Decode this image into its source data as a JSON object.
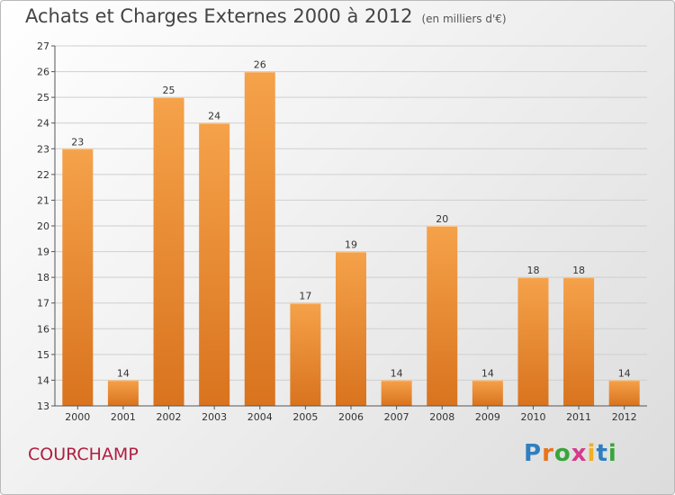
{
  "header": {
    "title": "Achats et Charges Externes 2000 à 2012",
    "subtitle": "(en milliers d'€)"
  },
  "footer": {
    "commune": "COURCHAMP",
    "brand_letters": [
      "P",
      "r",
      "o",
      "x",
      "i",
      "t",
      "i"
    ],
    "brand_colors": [
      "#2f7fc0",
      "#e8741c",
      "#3aa53a",
      "#d63a8a",
      "#f0b020",
      "#2f7fc0",
      "#3aa53a"
    ]
  },
  "colors": {
    "bar_light": "#f5a24a",
    "bar_dark": "#d9731e",
    "axis": "#555555",
    "grid": "#cfcfcf"
  },
  "chart_data": {
    "type": "bar",
    "categories": [
      "2000",
      "2001",
      "2002",
      "2003",
      "2004",
      "2005",
      "2006",
      "2007",
      "2008",
      "2009",
      "2010",
      "2011",
      "2012"
    ],
    "values": [
      23,
      14,
      25,
      24,
      26,
      17,
      19,
      14,
      20,
      14,
      18,
      18,
      14
    ],
    "ylim": [
      13,
      27
    ],
    "yticks": [
      13,
      14,
      15,
      16,
      17,
      18,
      19,
      20,
      21,
      22,
      23,
      24,
      25,
      26,
      27
    ],
    "grid": true
  }
}
